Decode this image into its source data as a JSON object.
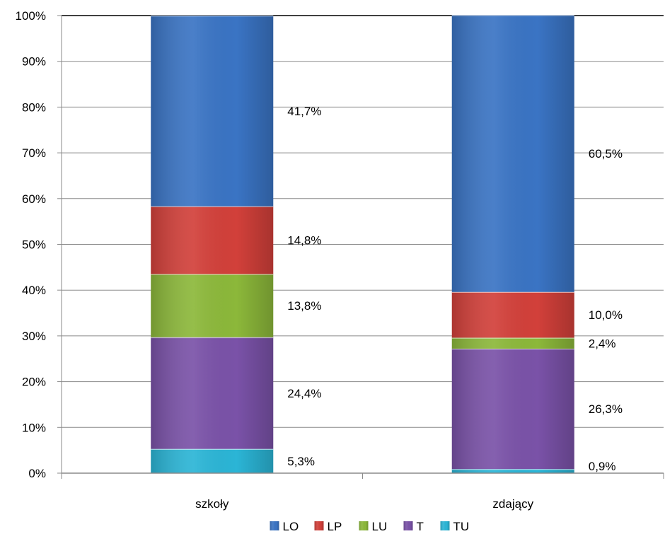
{
  "chart_data": {
    "type": "bar",
    "stacked": true,
    "percent": true,
    "categories": [
      "szkoły",
      "zdający"
    ],
    "series": [
      {
        "name": "TU",
        "color": "#2BB5D6",
        "values": [
          5.3,
          0.9
        ],
        "labels": [
          "5,3%",
          "0,9%"
        ]
      },
      {
        "name": "T",
        "color": "#7A52A8",
        "values": [
          24.4,
          26.3
        ],
        "labels": [
          "24,4%",
          "26,3%"
        ]
      },
      {
        "name": "LU",
        "color": "#8CB83A",
        "values": [
          13.8,
          2.4
        ],
        "labels": [
          "13,8%",
          "2,4%"
        ]
      },
      {
        "name": "LP",
        "color": "#D2403A",
        "values": [
          14.8,
          10.0
        ],
        "labels": [
          "14,8%",
          "10,0%"
        ]
      },
      {
        "name": "LO",
        "color": "#3A74C4",
        "values": [
          41.7,
          60.5
        ],
        "labels": [
          "41,7%",
          "60,5%"
        ]
      }
    ],
    "legend_order": [
      "LO",
      "LP",
      "LU",
      "T",
      "TU"
    ],
    "ylim": [
      0,
      100
    ],
    "yticks": [
      "0%",
      "10%",
      "20%",
      "30%",
      "40%",
      "50%",
      "60%",
      "70%",
      "80%",
      "90%",
      "100%"
    ],
    "grid": true,
    "legend_position": "bottom",
    "title": "",
    "xlabel": "",
    "ylabel": ""
  }
}
